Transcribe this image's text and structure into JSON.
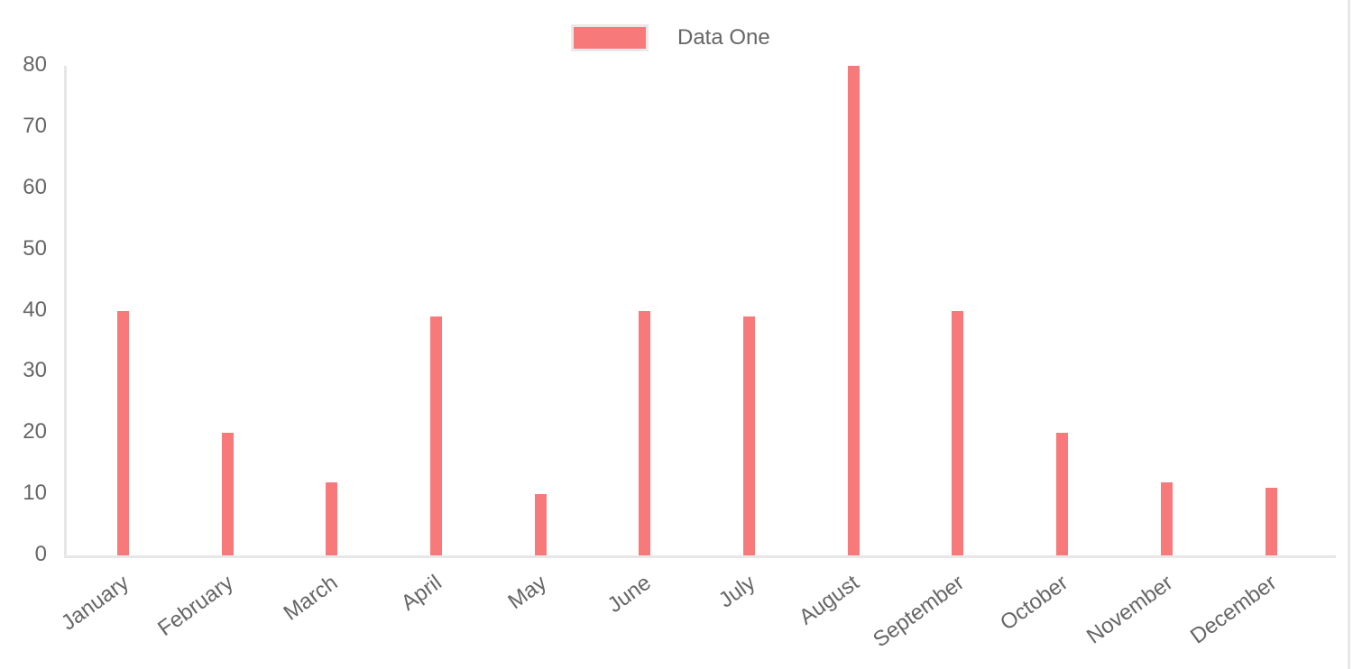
{
  "chart_data": {
    "type": "bar",
    "title": "",
    "categories": [
      "January",
      "February",
      "March",
      "April",
      "May",
      "June",
      "July",
      "August",
      "September",
      "October",
      "November",
      "December"
    ],
    "series": [
      {
        "name": "Data One",
        "color": "#f87979",
        "values": [
          40,
          20,
          12,
          39,
          10,
          40,
          39,
          80,
          40,
          20,
          12,
          11
        ]
      }
    ],
    "yticks": [
      0,
      10,
      20,
      30,
      40,
      50,
      60,
      70,
      80
    ],
    "ylim": [
      0,
      80
    ],
    "grid": "off",
    "legend_position": "top"
  },
  "legend": {
    "label": "Data One",
    "swatch_color": "#f87979"
  },
  "colors": {
    "bar": "#f87979",
    "axis_line": "#e7e7e7",
    "tick_text": "#666666"
  }
}
